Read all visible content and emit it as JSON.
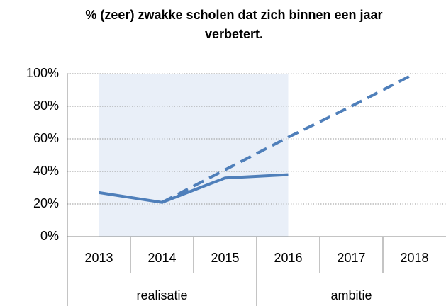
{
  "chart_data": {
    "type": "line",
    "title": "% (zeer) zwakke scholen dat zich binnen een jaar verbetert.",
    "categories": [
      "2013",
      "2014",
      "2015",
      "2016",
      "2017",
      "2018"
    ],
    "groups": [
      {
        "label": "realisatie",
        "count": 3
      },
      {
        "label": "ambitie",
        "count": 3
      }
    ],
    "series": [
      {
        "name": "realisatie",
        "color": "#4f7fba",
        "dash": false,
        "values": [
          27,
          21,
          36,
          38,
          null,
          null
        ]
      },
      {
        "name": "ambitie",
        "color": "#4f7fba",
        "dash": true,
        "values": [
          null,
          21,
          41,
          61,
          80,
          100
        ]
      }
    ],
    "ylim": [
      0,
      100
    ],
    "yticks": [
      {
        "value": 0,
        "label": "0%"
      },
      {
        "value": 20,
        "label": "20%"
      },
      {
        "value": 40,
        "label": "40%"
      },
      {
        "value": 60,
        "label": "60%"
      },
      {
        "value": 80,
        "label": "80%"
      },
      {
        "value": 100,
        "label": "100%"
      }
    ],
    "grid": true
  }
}
